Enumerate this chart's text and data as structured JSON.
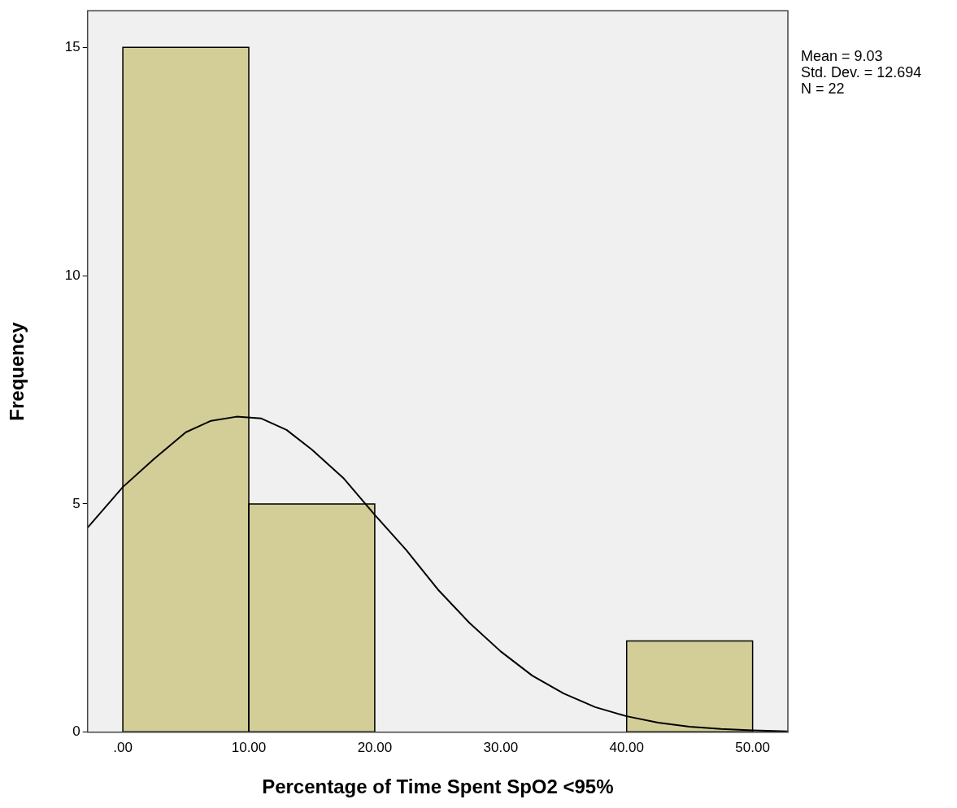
{
  "chart_data": {
    "type": "histogram",
    "xlabel": "Percentage of Time Spent SpO2 <95%",
    "ylabel": "Frequency",
    "bins": [
      0,
      10,
      20,
      30,
      40,
      50
    ],
    "values": [
      15,
      5,
      0,
      0,
      2
    ],
    "color": "#d3ce97",
    "series": [
      {
        "type": "line",
        "color": "#000000",
        "marker": "none",
        "x": [
          -2.8,
          0,
          2.5,
          5,
          7,
          9.03,
          11,
          13,
          15,
          17.5,
          20,
          22.5,
          25,
          27.5,
          30,
          32.5,
          35,
          37.5,
          40,
          42.5,
          45,
          47.5,
          50,
          52.8
        ],
        "values": [
          4.48,
          5.37,
          5.99,
          6.57,
          6.82,
          6.91,
          6.87,
          6.62,
          6.19,
          5.57,
          4.76,
          3.99,
          3.13,
          2.4,
          1.77,
          1.24,
          0.85,
          0.55,
          0.35,
          0.21,
          0.12,
          0.07,
          0.04,
          0.02
        ]
      }
    ],
    "xlim": [
      -2.8,
      52.8
    ],
    "ylim": [
      0,
      15.8
    ],
    "xticks": [
      {
        "value": 0,
        "label": ".00"
      },
      {
        "value": 10,
        "label": "10.00"
      },
      {
        "value": 20,
        "label": "20.00"
      },
      {
        "value": 30,
        "label": "30.00"
      },
      {
        "value": 40,
        "label": "40.00"
      },
      {
        "value": 50,
        "label": "50.00"
      }
    ],
    "yticks": [
      0,
      5,
      10,
      15
    ],
    "grid": false,
    "legend": false,
    "annotations": [
      "Mean = 9.03",
      "Std. Dev. = 12.694",
      "N = 22"
    ]
  }
}
